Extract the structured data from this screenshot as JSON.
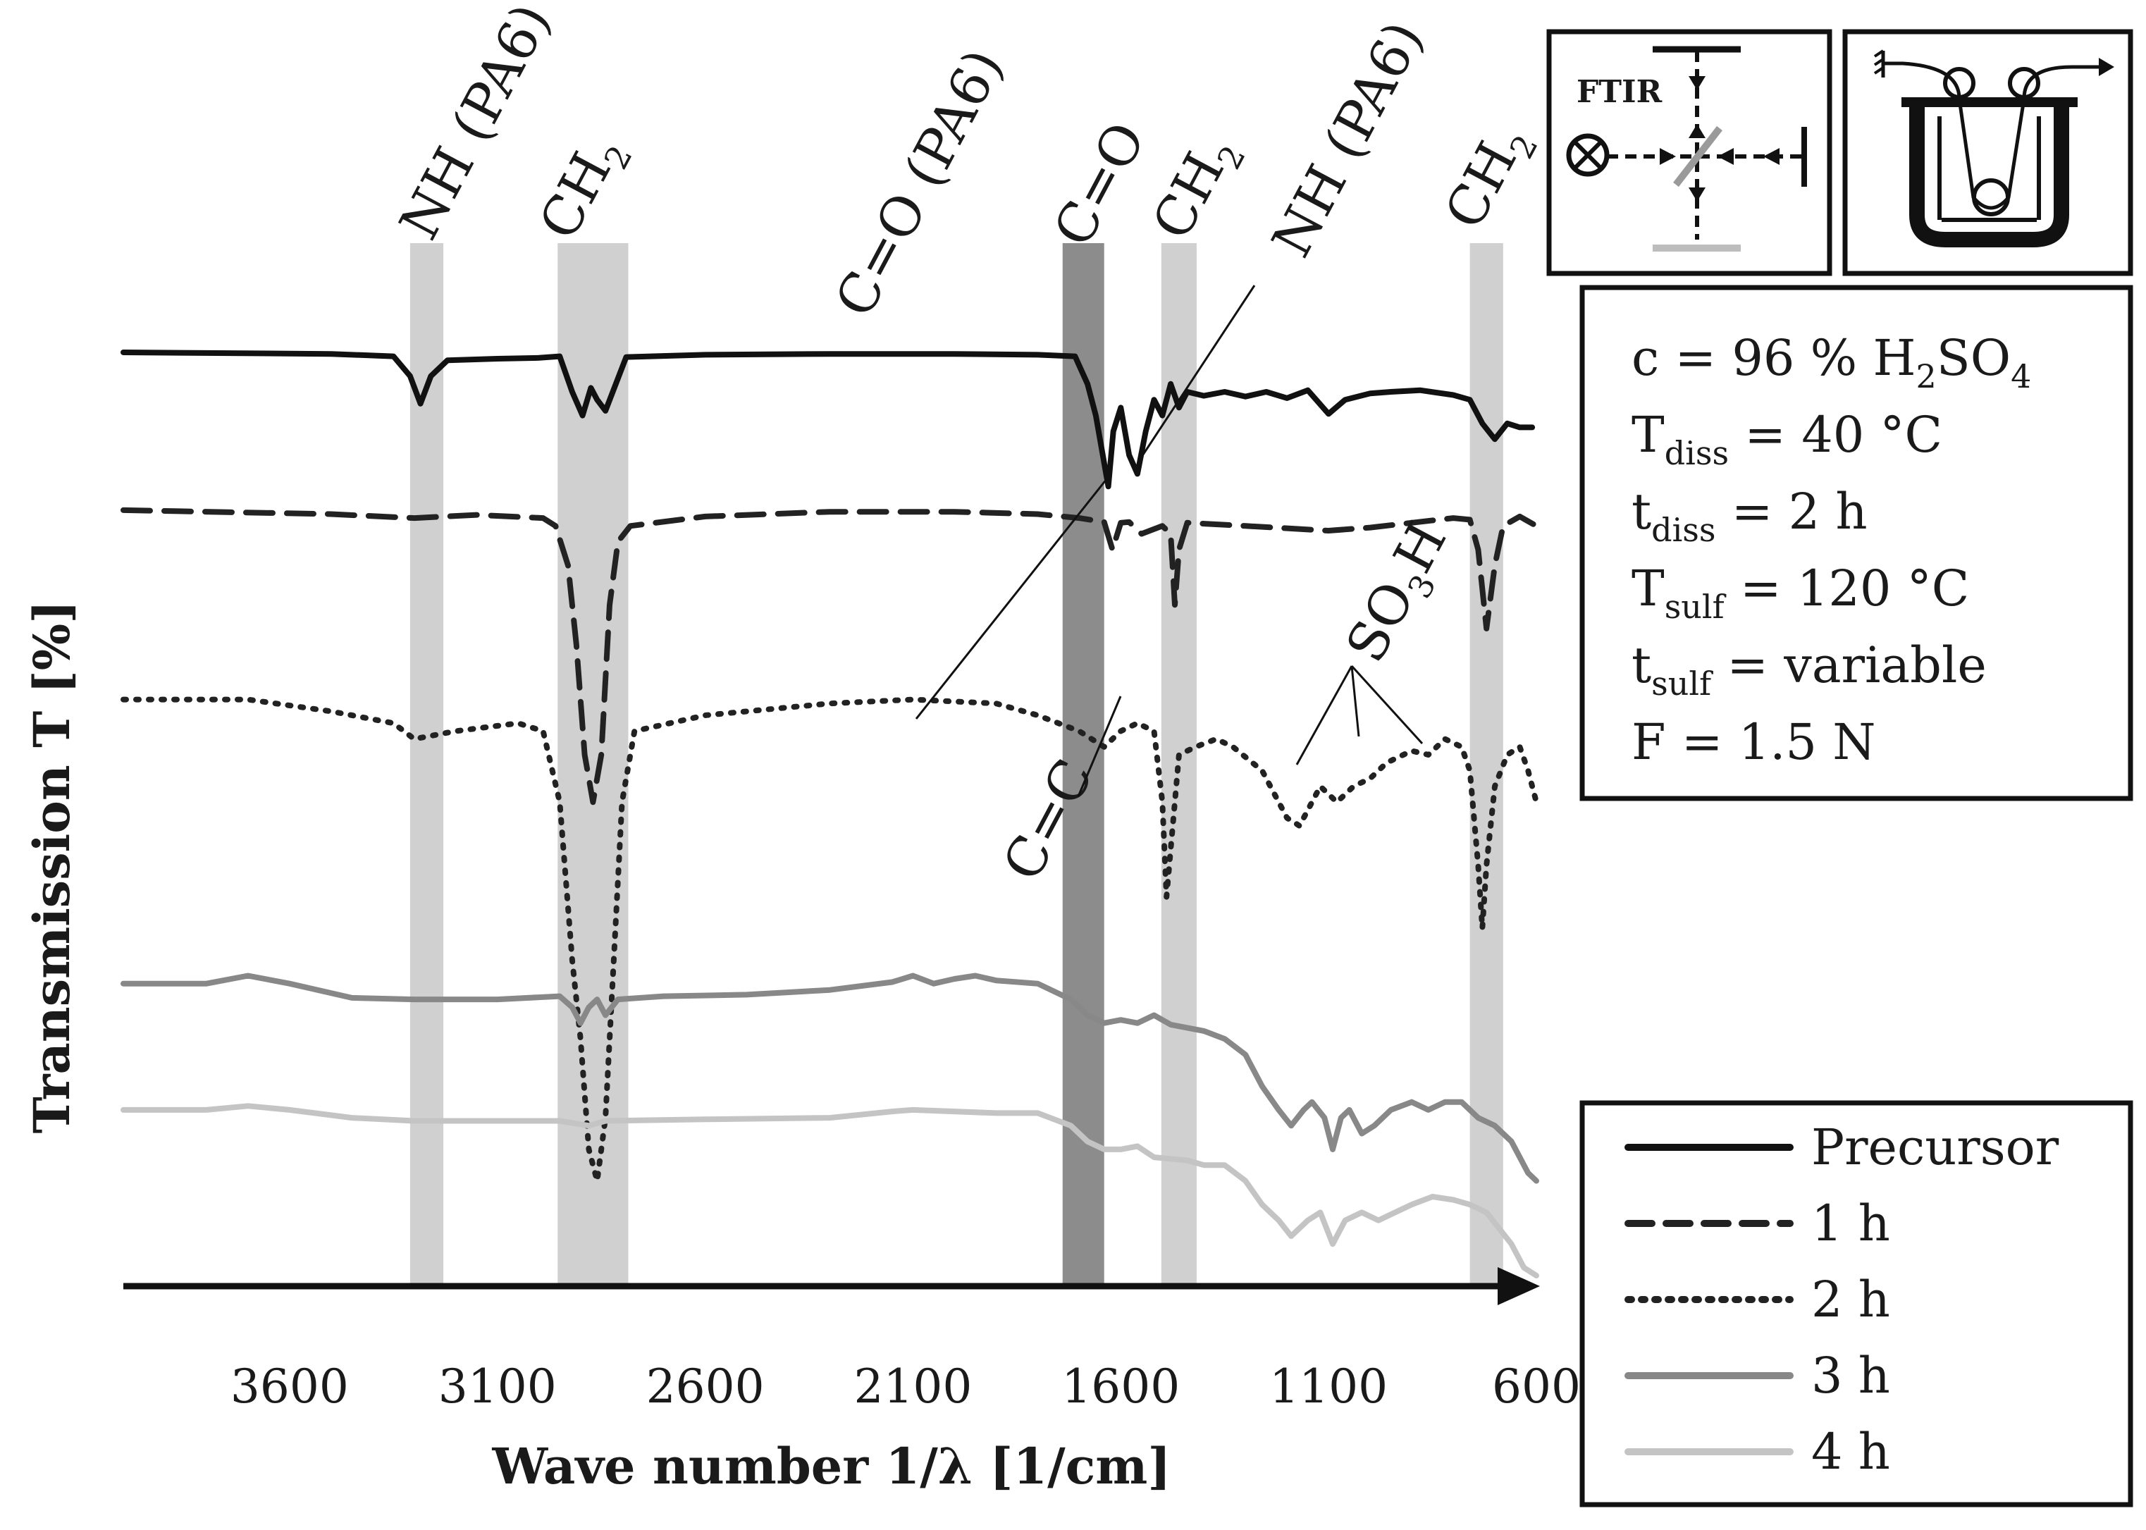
{
  "chart_data": {
    "type": "line",
    "title": "",
    "xlabel": "Wave number 1/λ [1/cm]",
    "ylabel": "Transmission T [%]",
    "xlim": [
      4000,
      600
    ],
    "x_reversed": true,
    "x_ticks": [
      3600,
      3100,
      2600,
      2100,
      1600,
      1100,
      600
    ],
    "y_ticks_shown": false,
    "grid": false,
    "legend_position": "bottom-right",
    "series": [
      {
        "name": "Precursor",
        "style": "solid",
        "color": "#111111",
        "points": [
          [
            4000,
            17
          ],
          [
            3500,
            16.8
          ],
          [
            3350,
            16.5
          ],
          [
            3310,
            14
          ],
          [
            3285,
            10.5
          ],
          [
            3260,
            14
          ],
          [
            3220,
            16
          ],
          [
            3100,
            16.2
          ],
          [
            3000,
            16.3
          ],
          [
            2950,
            16.5
          ],
          [
            2920,
            12
          ],
          [
            2895,
            9
          ],
          [
            2875,
            12.5
          ],
          [
            2860,
            11
          ],
          [
            2840,
            9.6
          ],
          [
            2815,
            13
          ],
          [
            2790,
            16.4
          ],
          [
            2600,
            16.7
          ],
          [
            2300,
            16.8
          ],
          [
            2000,
            16.8
          ],
          [
            1800,
            16.7
          ],
          [
            1710,
            16.5
          ],
          [
            1680,
            13
          ],
          [
            1660,
            9
          ],
          [
            1640,
            3
          ],
          [
            1630,
            0
          ],
          [
            1618,
            7
          ],
          [
            1600,
            10
          ],
          [
            1580,
            4
          ],
          [
            1560,
            1.6
          ],
          [
            1540,
            7
          ],
          [
            1520,
            11
          ],
          [
            1500,
            9
          ],
          [
            1480,
            13
          ],
          [
            1460,
            10
          ],
          [
            1440,
            12
          ],
          [
            1400,
            11.5
          ],
          [
            1350,
            12
          ],
          [
            1300,
            11.4
          ],
          [
            1250,
            12
          ],
          [
            1200,
            11.2
          ],
          [
            1150,
            12.2
          ],
          [
            1100,
            9.2
          ],
          [
            1060,
            11
          ],
          [
            1000,
            11.8
          ],
          [
            950,
            12
          ],
          [
            880,
            12.2
          ],
          [
            800,
            11.6
          ],
          [
            760,
            11
          ],
          [
            730,
            8
          ],
          [
            700,
            6
          ],
          [
            670,
            8
          ],
          [
            640,
            7.5
          ],
          [
            610,
            7.5
          ]
        ]
      },
      {
        "name": "1 h",
        "style": "dashed",
        "color": "#222222",
        "points": [
          [
            4000,
            -3
          ],
          [
            3500,
            -3.5
          ],
          [
            3300,
            -4
          ],
          [
            3150,
            -3.6
          ],
          [
            2990,
            -4
          ],
          [
            2960,
            -5
          ],
          [
            2930,
            -10
          ],
          [
            2910,
            -20
          ],
          [
            2890,
            -34
          ],
          [
            2870,
            -40
          ],
          [
            2850,
            -34
          ],
          [
            2830,
            -15
          ],
          [
            2810,
            -7
          ],
          [
            2780,
            -5
          ],
          [
            2600,
            -3.8
          ],
          [
            2300,
            -3.2
          ],
          [
            2000,
            -3.2
          ],
          [
            1800,
            -3.5
          ],
          [
            1700,
            -4
          ],
          [
            1640,
            -4.5
          ],
          [
            1620,
            -8
          ],
          [
            1600,
            -4.6
          ],
          [
            1580,
            -4.5
          ],
          [
            1550,
            -6
          ],
          [
            1500,
            -5
          ],
          [
            1480,
            -6
          ],
          [
            1470,
            -15
          ],
          [
            1460,
            -8
          ],
          [
            1440,
            -4.6
          ],
          [
            1300,
            -5
          ],
          [
            1100,
            -5.6
          ],
          [
            1000,
            -5.2
          ],
          [
            900,
            -4.6
          ],
          [
            800,
            -4
          ],
          [
            760,
            -4.2
          ],
          [
            740,
            -8
          ],
          [
            720,
            -18
          ],
          [
            700,
            -10
          ],
          [
            680,
            -5
          ],
          [
            640,
            -3.8
          ],
          [
            600,
            -5
          ]
        ]
      },
      {
        "name": "2 h",
        "style": "dotted",
        "color": "#222222",
        "points": [
          [
            4000,
            -27
          ],
          [
            3700,
            -27
          ],
          [
            3500,
            -28.5
          ],
          [
            3350,
            -30
          ],
          [
            3300,
            -32
          ],
          [
            3200,
            -31
          ],
          [
            3050,
            -30
          ],
          [
            2990,
            -31
          ],
          [
            2950,
            -40
          ],
          [
            2920,
            -60
          ],
          [
            2900,
            -70
          ],
          [
            2880,
            -84
          ],
          [
            2860,
            -88
          ],
          [
            2840,
            -80
          ],
          [
            2820,
            -60
          ],
          [
            2800,
            -40
          ],
          [
            2770,
            -31
          ],
          [
            2600,
            -29
          ],
          [
            2300,
            -27.5
          ],
          [
            2100,
            -27
          ],
          [
            1900,
            -27.5
          ],
          [
            1800,
            -29
          ],
          [
            1700,
            -31
          ],
          [
            1640,
            -33
          ],
          [
            1600,
            -31
          ],
          [
            1560,
            -30
          ],
          [
            1520,
            -31
          ],
          [
            1500,
            -40
          ],
          [
            1490,
            -52
          ],
          [
            1480,
            -46
          ],
          [
            1460,
            -34
          ],
          [
            1420,
            -33
          ],
          [
            1370,
            -32
          ],
          [
            1330,
            -33
          ],
          [
            1260,
            -36
          ],
          [
            1200,
            -42
          ],
          [
            1170,
            -43
          ],
          [
            1150,
            -41
          ],
          [
            1120,
            -38
          ],
          [
            1080,
            -40
          ],
          [
            1040,
            -38
          ],
          [
            1000,
            -37
          ],
          [
            960,
            -35
          ],
          [
            900,
            -33.5
          ],
          [
            860,
            -34
          ],
          [
            820,
            -32
          ],
          [
            780,
            -33
          ],
          [
            760,
            -36
          ],
          [
            740,
            -48
          ],
          [
            730,
            -56
          ],
          [
            720,
            -48
          ],
          [
            700,
            -38
          ],
          [
            670,
            -34
          ],
          [
            640,
            -33
          ],
          [
            620,
            -36
          ],
          [
            600,
            -40
          ]
        ]
      },
      {
        "name": "3 h",
        "style": "solid",
        "color": "#888888",
        "points": [
          [
            4000,
            -63
          ],
          [
            3800,
            -63
          ],
          [
            3700,
            -62
          ],
          [
            3600,
            -63
          ],
          [
            3450,
            -64.8
          ],
          [
            3300,
            -65
          ],
          [
            3100,
            -65
          ],
          [
            2950,
            -64.6
          ],
          [
            2920,
            -66
          ],
          [
            2900,
            -68
          ],
          [
            2880,
            -66
          ],
          [
            2860,
            -65
          ],
          [
            2840,
            -67
          ],
          [
            2810,
            -65
          ],
          [
            2700,
            -64.6
          ],
          [
            2500,
            -64.4
          ],
          [
            2300,
            -63.8
          ],
          [
            2150,
            -62.8
          ],
          [
            2100,
            -62
          ],
          [
            2050,
            -63
          ],
          [
            2000,
            -62.4
          ],
          [
            1950,
            -62
          ],
          [
            1900,
            -62.6
          ],
          [
            1800,
            -63
          ],
          [
            1720,
            -65
          ],
          [
            1680,
            -67
          ],
          [
            1640,
            -68
          ],
          [
            1600,
            -67.6
          ],
          [
            1560,
            -68
          ],
          [
            1520,
            -67
          ],
          [
            1480,
            -68.2
          ],
          [
            1440,
            -68.6
          ],
          [
            1400,
            -69
          ],
          [
            1350,
            -70
          ],
          [
            1300,
            -72
          ],
          [
            1260,
            -76
          ],
          [
            1220,
            -79
          ],
          [
            1190,
            -81
          ],
          [
            1160,
            -79
          ],
          [
            1140,
            -78
          ],
          [
            1110,
            -80
          ],
          [
            1090,
            -84
          ],
          [
            1070,
            -80
          ],
          [
            1050,
            -79
          ],
          [
            1020,
            -82
          ],
          [
            990,
            -81
          ],
          [
            950,
            -79
          ],
          [
            900,
            -78
          ],
          [
            860,
            -79
          ],
          [
            820,
            -78
          ],
          [
            780,
            -78
          ],
          [
            740,
            -80
          ],
          [
            700,
            -81
          ],
          [
            660,
            -83
          ],
          [
            620,
            -87
          ],
          [
            600,
            -88
          ]
        ]
      },
      {
        "name": "4 h",
        "style": "solid",
        "color": "#c4c4c4",
        "points": [
          [
            4000,
            -79
          ],
          [
            3800,
            -79
          ],
          [
            3700,
            -78.5
          ],
          [
            3600,
            -79
          ],
          [
            3450,
            -80
          ],
          [
            3300,
            -80.4
          ],
          [
            3100,
            -80.4
          ],
          [
            2950,
            -80.4
          ],
          [
            2880,
            -81
          ],
          [
            2840,
            -80.4
          ],
          [
            2600,
            -80.2
          ],
          [
            2300,
            -80
          ],
          [
            2150,
            -79.2
          ],
          [
            2100,
            -79
          ],
          [
            1900,
            -79.4
          ],
          [
            1800,
            -79.4
          ],
          [
            1720,
            -81
          ],
          [
            1680,
            -83
          ],
          [
            1640,
            -84
          ],
          [
            1600,
            -84
          ],
          [
            1560,
            -83.6
          ],
          [
            1520,
            -85
          ],
          [
            1480,
            -85.2
          ],
          [
            1440,
            -85.4
          ],
          [
            1400,
            -86
          ],
          [
            1350,
            -86
          ],
          [
            1300,
            -88
          ],
          [
            1260,
            -91
          ],
          [
            1220,
            -93
          ],
          [
            1190,
            -95
          ],
          [
            1150,
            -93
          ],
          [
            1120,
            -92
          ],
          [
            1090,
            -96
          ],
          [
            1060,
            -93
          ],
          [
            1020,
            -92
          ],
          [
            980,
            -93
          ],
          [
            940,
            -92
          ],
          [
            900,
            -91
          ],
          [
            850,
            -90
          ],
          [
            800,
            -90.4
          ],
          [
            760,
            -91
          ],
          [
            720,
            -92
          ],
          [
            690,
            -94
          ],
          [
            660,
            -96
          ],
          [
            630,
            -99
          ],
          [
            600,
            -100
          ]
        ]
      }
    ],
    "bands": [
      {
        "name": "NH (PA6)",
        "center": 3270,
        "width": 80,
        "shade": "#d0d0d0"
      },
      {
        "name": "CH2",
        "center": 2870,
        "width": 170,
        "shade": "#d0d0d0"
      },
      {
        "name": "C=O",
        "center": 1690,
        "width": 100,
        "shade": "#8c8c8c"
      },
      {
        "name": "CH2",
        "center": 1460,
        "width": 85,
        "shade": "#d0d0d0"
      },
      {
        "name": "CH2",
        "center": 720,
        "width": 80,
        "shade": "#d0d0d0"
      }
    ],
    "annotations": [
      {
        "label": "NH (PA6)",
        "type": "band-top"
      },
      {
        "label": "CH2",
        "type": "band-top"
      },
      {
        "label": "C=O (PA6)",
        "type": "leader",
        "target_x": 1630,
        "target_series": "Precursor"
      },
      {
        "label": "C=O",
        "type": "band-top"
      },
      {
        "label": "CH2",
        "type": "band-top"
      },
      {
        "label": "NH (PA6)",
        "type": "leader",
        "target_x": 1565,
        "target_series": "Precursor"
      },
      {
        "label": "CH2",
        "type": "band-top"
      },
      {
        "label": "SO3H",
        "type": "leader-multi",
        "target_x": [
          1170,
          1050,
          940
        ],
        "target_series": "2 h"
      },
      {
        "label": "C=C",
        "type": "leader",
        "target_x": 1600,
        "target_series": "2 h"
      }
    ]
  },
  "parameters_box": {
    "lines": [
      {
        "main": "c = 96 % H",
        "sub1": "2",
        "mid": "SO",
        "sub2": "4",
        "tail": ""
      },
      {
        "main": "T",
        "sub1": "diss",
        "mid": " = 40 °C",
        "sub2": "",
        "tail": ""
      },
      {
        "main": "t",
        "sub1": "diss",
        "mid": " = 2 h",
        "sub2": "",
        "tail": ""
      },
      {
        "main": "T",
        "sub1": "sulf",
        "mid": " = 120 °C",
        "sub2": "",
        "tail": ""
      },
      {
        "main": "t",
        "sub1": "sulf",
        "mid": " = variable",
        "sub2": "",
        "tail": ""
      },
      {
        "main": "F = 1.5 N",
        "sub1": "",
        "mid": "",
        "sub2": "",
        "tail": ""
      }
    ]
  },
  "ftir_inset": {
    "label": "FTIR"
  },
  "legend": {
    "items": [
      {
        "label": "Precursor",
        "style": "solid",
        "color": "#111111"
      },
      {
        "label": "1 h",
        "style": "dashed",
        "color": "#222222"
      },
      {
        "label": "2 h",
        "style": "dotted",
        "color": "#222222"
      },
      {
        "label": "3 h",
        "style": "solid",
        "color": "#888888"
      },
      {
        "label": "4 h",
        "style": "solid",
        "color": "#c4c4c4"
      }
    ]
  },
  "band_labels": {
    "nh_pa6": "NH (PA6)",
    "ch2_a": "CH",
    "ch2_a_sub": "2",
    "co_pa6": "C=O (PA6)",
    "co": "C=O",
    "ch2_b": "CH",
    "ch2_b_sub": "2",
    "nh_pa6_b": "NH (PA6)",
    "ch2_c": "CH",
    "ch2_c_sub": "2",
    "so3h_main": "SO",
    "so3h_sub": "3",
    "so3h_tail": "H",
    "cc": "C=C"
  }
}
